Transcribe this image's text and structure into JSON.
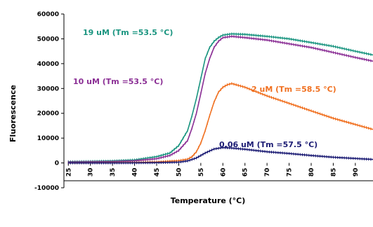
{
  "chart_data": {
    "type": "line",
    "title": "",
    "xlabel": "Temperature (°C)",
    "ylabel": "Fluorescence",
    "xlim": [
      24,
      94
    ],
    "ylim": [
      -10000,
      60000
    ],
    "x_ticks": [
      25,
      30,
      35,
      40,
      45,
      50,
      55,
      60,
      65,
      70,
      75,
      80,
      85,
      90
    ],
    "x_tick_labels": [
      "25",
      "30",
      "35",
      "40",
      "45",
      "50",
      "55",
      "60",
      "65",
      "70",
      "75",
      "80",
      "85",
      "90"
    ],
    "y_ticks": [
      -10000,
      0,
      10000,
      20000,
      30000,
      40000,
      50000,
      60000
    ],
    "y_tick_labels": [
      "-10000",
      "0",
      "10000",
      "20000",
      "30000",
      "40000",
      "50000",
      "60000"
    ],
    "grid": false,
    "legend": "none",
    "series": [
      {
        "name": "19 uM (Tm =53.5 °C)",
        "color": "#1a9580",
        "x": [
          25,
          30,
          35,
          40,
          45,
          48,
          50,
          52,
          53,
          54,
          55,
          56,
          57,
          58,
          59,
          60,
          62,
          65,
          70,
          75,
          80,
          85,
          90,
          94
        ],
        "y": [
          500,
          600,
          800,
          1200,
          2500,
          4000,
          7000,
          13000,
          19000,
          26000,
          34000,
          42000,
          46500,
          49000,
          50500,
          51500,
          52000,
          51800,
          51000,
          50000,
          48500,
          47000,
          45000,
          43500
        ]
      },
      {
        "name": "10 uM (Tm =53.5 °C)",
        "color": "#8b2f95",
        "x": [
          25,
          30,
          35,
          40,
          45,
          48,
          50,
          52,
          53,
          54,
          55,
          56,
          57,
          58,
          59,
          60,
          62,
          65,
          70,
          75,
          80,
          85,
          90,
          94
        ],
        "y": [
          300,
          400,
          500,
          800,
          1700,
          3000,
          5000,
          9000,
          14000,
          20000,
          28000,
          36000,
          42000,
          46500,
          49000,
          50500,
          51000,
          50500,
          49500,
          48000,
          46500,
          44500,
          42500,
          41000
        ]
      },
      {
        "name": "2 uM (Tm =58.5 °C)",
        "color": "#f07020",
        "x": [
          25,
          30,
          35,
          40,
          45,
          50,
          52,
          53,
          54,
          55,
          56,
          57,
          58,
          59,
          60,
          61,
          62,
          65,
          70,
          75,
          80,
          85,
          90,
          94
        ],
        "y": [
          0,
          50,
          100,
          200,
          400,
          900,
          1500,
          2500,
          4500,
          8000,
          13000,
          19000,
          24500,
          28500,
          30500,
          31500,
          32000,
          30500,
          27000,
          24000,
          21000,
          18000,
          15500,
          13500
        ]
      },
      {
        "name": "0.06 uM (Tm =57.5 °C)",
        "color": "#1c1c74",
        "x": [
          25,
          30,
          35,
          40,
          45,
          50,
          52,
          54,
          56,
          58,
          60,
          62,
          65,
          70,
          75,
          80,
          85,
          90,
          94
        ],
        "y": [
          0,
          0,
          0,
          50,
          100,
          300,
          800,
          2000,
          4000,
          5600,
          6200,
          6000,
          5500,
          4500,
          3800,
          3000,
          2300,
          1800,
          1400
        ]
      }
    ],
    "annotations": [
      {
        "text": "19 uM (Tm =53.5 °C)",
        "color": "#1a9580"
      },
      {
        "text": "10 uM (Tm =53.5 °C)",
        "color": "#8b2f95"
      },
      {
        "text": "2 uM (Tm =58.5 °C)",
        "color": "#f07020"
      },
      {
        "text": "0.06 uM (Tm =57.5 °C)",
        "color": "#1c1c74"
      }
    ]
  }
}
